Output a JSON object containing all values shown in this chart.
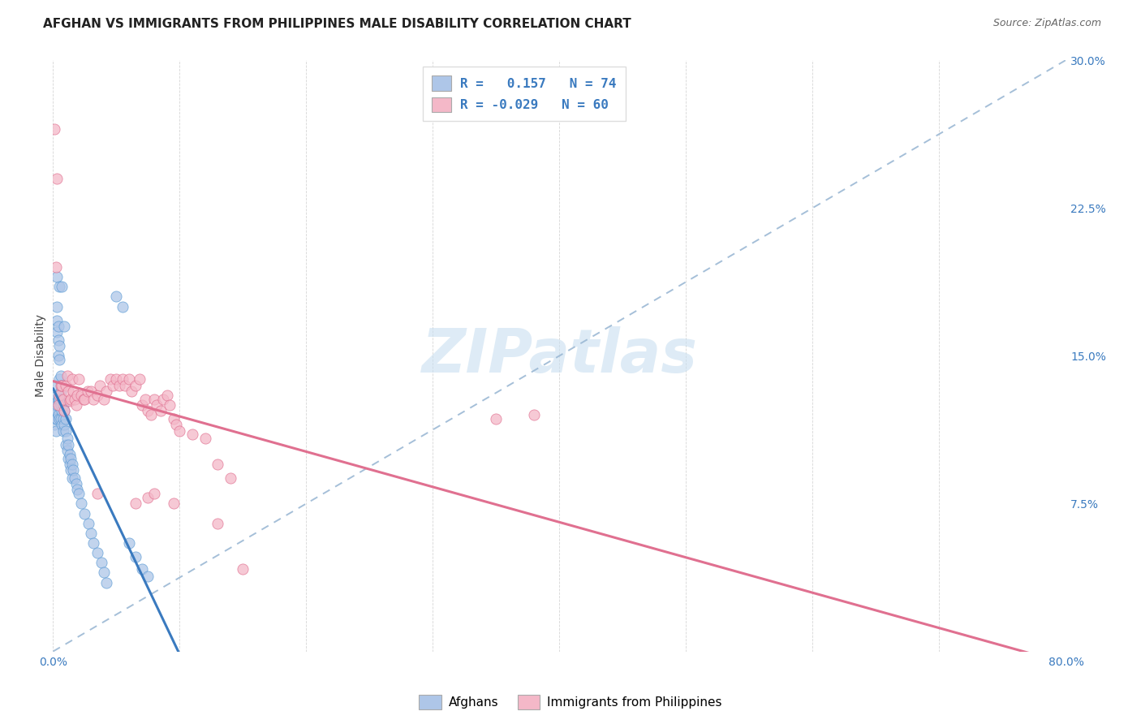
{
  "title": "AFGHAN VS IMMIGRANTS FROM PHILIPPINES MALE DISABILITY CORRELATION CHART",
  "source": "Source: ZipAtlas.com",
  "ylabel": "Male Disability",
  "x_min": 0.0,
  "x_max": 0.8,
  "y_min": 0.0,
  "y_max": 0.3,
  "x_ticks": [
    0.0,
    0.1,
    0.2,
    0.3,
    0.4,
    0.5,
    0.6,
    0.7,
    0.8
  ],
  "y_ticks": [
    0.0,
    0.075,
    0.15,
    0.225,
    0.3
  ],
  "y_tick_labels": [
    "",
    "7.5%",
    "15.0%",
    "22.5%",
    "30.0%"
  ],
  "watermark": "ZIPatlas",
  "afghans_color": "#aec6e8",
  "afghans_edge_color": "#5b9bd5",
  "philippines_color": "#f4b8c8",
  "philippines_edge_color": "#e07090",
  "trendline_afghans_color": "#3a7abf",
  "trendline_philippines_color": "#e07090",
  "trendline_dash_color": "#9bb8d4",
  "legend_text_color": "#3a7abf",
  "afghans_x": [
    0.001,
    0.001,
    0.001,
    0.002,
    0.002,
    0.002,
    0.002,
    0.002,
    0.003,
    0.003,
    0.003,
    0.003,
    0.003,
    0.003,
    0.004,
    0.004,
    0.004,
    0.004,
    0.004,
    0.005,
    0.005,
    0.005,
    0.005,
    0.005,
    0.006,
    0.006,
    0.006,
    0.006,
    0.007,
    0.007,
    0.007,
    0.007,
    0.008,
    0.008,
    0.008,
    0.009,
    0.009,
    0.01,
    0.01,
    0.01,
    0.011,
    0.011,
    0.012,
    0.012,
    0.013,
    0.013,
    0.014,
    0.014,
    0.015,
    0.015,
    0.016,
    0.017,
    0.018,
    0.019,
    0.02,
    0.022,
    0.025,
    0.028,
    0.03,
    0.032,
    0.035,
    0.038,
    0.04,
    0.042,
    0.003,
    0.005,
    0.05,
    0.055,
    0.007,
    0.009,
    0.06,
    0.065,
    0.07,
    0.075
  ],
  "afghans_y": [
    0.127,
    0.12,
    0.115,
    0.135,
    0.128,
    0.122,
    0.118,
    0.112,
    0.175,
    0.168,
    0.162,
    0.13,
    0.125,
    0.118,
    0.165,
    0.158,
    0.15,
    0.128,
    0.12,
    0.155,
    0.148,
    0.138,
    0.128,
    0.118,
    0.14,
    0.132,
    0.125,
    0.118,
    0.135,
    0.128,
    0.122,
    0.115,
    0.125,
    0.118,
    0.112,
    0.122,
    0.115,
    0.118,
    0.112,
    0.105,
    0.108,
    0.102,
    0.105,
    0.098,
    0.1,
    0.095,
    0.098,
    0.092,
    0.095,
    0.088,
    0.092,
    0.088,
    0.085,
    0.082,
    0.08,
    0.075,
    0.07,
    0.065,
    0.06,
    0.055,
    0.05,
    0.045,
    0.04,
    0.035,
    0.19,
    0.185,
    0.18,
    0.175,
    0.185,
    0.165,
    0.055,
    0.048,
    0.042,
    0.038
  ],
  "philippines_x": [
    0.001,
    0.002,
    0.003,
    0.004,
    0.005,
    0.006,
    0.007,
    0.008,
    0.009,
    0.01,
    0.011,
    0.012,
    0.013,
    0.014,
    0.015,
    0.016,
    0.017,
    0.018,
    0.019,
    0.02,
    0.022,
    0.024,
    0.025,
    0.027,
    0.03,
    0.032,
    0.035,
    0.037,
    0.04,
    0.042,
    0.045,
    0.047,
    0.05,
    0.052,
    0.055,
    0.057,
    0.06,
    0.062,
    0.065,
    0.068,
    0.07,
    0.073,
    0.075,
    0.077,
    0.08,
    0.082,
    0.085,
    0.087,
    0.09,
    0.092,
    0.095,
    0.097,
    0.1,
    0.11,
    0.12,
    0.13,
    0.14,
    0.38,
    0.35
  ],
  "philippines_y": [
    0.265,
    0.195,
    0.24,
    0.125,
    0.13,
    0.135,
    0.135,
    0.128,
    0.122,
    0.135,
    0.14,
    0.132,
    0.127,
    0.128,
    0.138,
    0.132,
    0.128,
    0.125,
    0.13,
    0.138,
    0.13,
    0.128,
    0.128,
    0.132,
    0.132,
    0.128,
    0.13,
    0.135,
    0.128,
    0.132,
    0.138,
    0.135,
    0.138,
    0.135,
    0.138,
    0.135,
    0.138,
    0.132,
    0.135,
    0.138,
    0.125,
    0.128,
    0.122,
    0.12,
    0.128,
    0.125,
    0.122,
    0.128,
    0.13,
    0.125,
    0.118,
    0.115,
    0.112,
    0.11,
    0.108,
    0.095,
    0.088,
    0.12,
    0.118
  ],
  "philippines_low_x": [
    0.035,
    0.065,
    0.075,
    0.08,
    0.095,
    0.13,
    0.15
  ],
  "philippines_low_y": [
    0.08,
    0.075,
    0.078,
    0.08,
    0.075,
    0.065,
    0.042
  ]
}
